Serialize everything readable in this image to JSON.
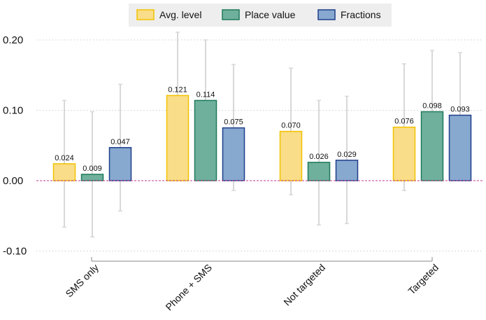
{
  "chart_data": {
    "type": "bar",
    "categories": [
      "SMS only",
      "Phone + SMS",
      "Not targeted",
      "Targeted"
    ],
    "series": [
      {
        "name": "Avg. level",
        "values": [
          0.024,
          0.121,
          0.07,
          0.076
        ],
        "labels": [
          "0.024",
          "0.121",
          "0.070",
          "0.076"
        ],
        "ci_low": [
          -0.066,
          0.031,
          -0.02,
          -0.014
        ],
        "ci_high": [
          0.114,
          0.211,
          0.16,
          0.166
        ],
        "fill": "#f9dd88",
        "stroke": "#f2c200"
      },
      {
        "name": "Place value",
        "values": [
          0.009,
          0.114,
          0.026,
          0.098
        ],
        "labels": [
          "0.009",
          "0.114",
          "0.026",
          "0.098"
        ],
        "ci_low": [
          -0.08,
          0.028,
          -0.063,
          0.012
        ],
        "ci_high": [
          0.098,
          0.2,
          0.114,
          0.185
        ],
        "fill": "#6fb09c",
        "stroke": "#1f7a5a"
      },
      {
        "name": "Fractions",
        "values": [
          0.047,
          0.075,
          0.029,
          0.093
        ],
        "labels": [
          "0.047",
          "0.075",
          "0.029",
          "0.093"
        ],
        "ci_low": [
          -0.043,
          -0.014,
          -0.061,
          0.004
        ],
        "ci_high": [
          0.137,
          0.165,
          0.12,
          0.182
        ],
        "fill": "#87a8cf",
        "stroke": "#1f3f8a"
      }
    ],
    "yticks": [
      "0.20",
      "0.10",
      "0.00",
      "-0.10"
    ],
    "ytick_values": [
      0.2,
      0.1,
      0.0,
      -0.1
    ],
    "ylim": [
      -0.1,
      0.2
    ],
    "grid": true,
    "legend_position": "top-center",
    "reference_line": 0,
    "error_bar_color": "#d8d8d8",
    "grid_color": "#cfcfcf",
    "zero_line_color": "#c0398c"
  }
}
